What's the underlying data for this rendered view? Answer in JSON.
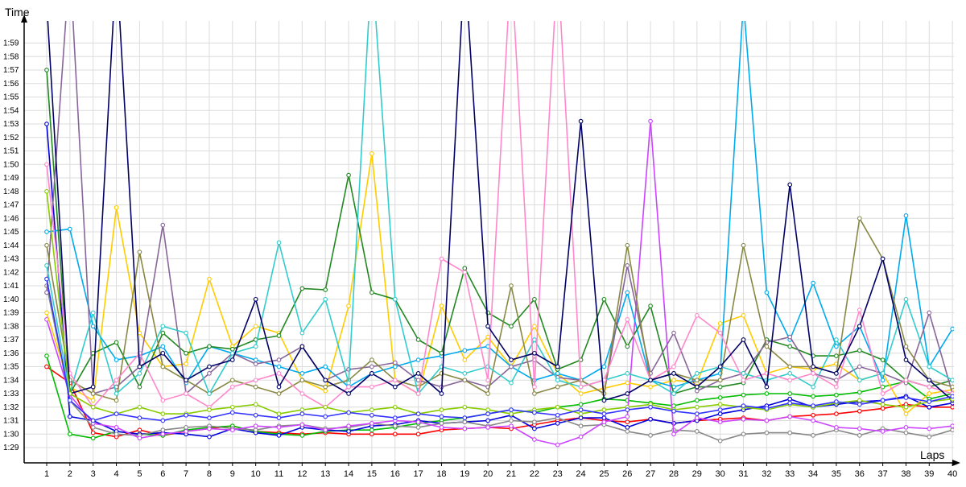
{
  "chart_data": {
    "type": "line",
    "title": "",
    "xlabel": "Laps",
    "ylabel": "Time",
    "x": [
      1,
      2,
      3,
      4,
      5,
      6,
      7,
      8,
      9,
      10,
      11,
      12,
      13,
      14,
      15,
      16,
      17,
      18,
      19,
      20,
      21,
      22,
      23,
      24,
      25,
      26,
      27,
      28,
      29,
      30,
      31,
      32,
      33,
      34,
      35,
      36,
      37,
      38,
      39,
      40
    ],
    "xlim": [
      1,
      40
    ],
    "ylim": [
      "1:28",
      "2:00"
    ],
    "y_ticks": [
      "1:29",
      "1:30",
      "1:31",
      "1:32",
      "1:33",
      "1:34",
      "1:35",
      "1:36",
      "1:37",
      "1:38",
      "1:39",
      "1:40",
      "1:41",
      "1:42",
      "1:43",
      "1:44",
      "1:45",
      "1:46",
      "1:47",
      "1:48",
      "1:49",
      "1:50",
      "1:51",
      "1:52",
      "1:53",
      "1:54",
      "1:55",
      "1:56",
      "1:57",
      "1:58",
      "1:59"
    ],
    "grid": true,
    "legend": "none",
    "series": [
      {
        "color": "#ff0000",
        "values": [
          "1:35.0",
          "1:33.8",
          "1:30.1",
          "1:29.8",
          "1:30.3",
          "1:29.9",
          "1:30.2",
          "1:30.4",
          "1:30.6",
          "1:30.2",
          "1:30.1",
          "1:30.0",
          "1:30.1",
          "1:30.0",
          "1:30.0",
          "1:30.0",
          "1:30.0",
          "1:30.3",
          "1:30.4",
          "1:30.5",
          "1:30.4",
          "1:30.7",
          "1:31.0",
          "1:31.2",
          "1:31.0",
          "1:30.9",
          "1:31.1",
          "1:30.8",
          "1:31.0",
          "1:31.1",
          "1:31.2",
          "1:31.0",
          "1:31.3",
          "1:31.4",
          "1:31.5",
          "1:31.7",
          "1:31.9",
          "1:32.2",
          "1:32.0",
          "1:32.0"
        ]
      },
      {
        "color": "#00bb00",
        "values": [
          "1:35.8",
          "1:30.0",
          "1:29.7",
          "1:30.2",
          "1:30.0",
          "1:29.9",
          "1:30.3",
          "1:30.5",
          "1:30.6",
          "1:30.2",
          "1:30.0",
          "1:29.9",
          "1:30.2",
          "1:30.3",
          "1:30.3",
          "1:30.5",
          "1:30.8",
          "1:31.0",
          "1:31.2",
          "1:31.5",
          "1:31.8",
          "1:31.6",
          "1:32.0",
          "1:32.2",
          "1:32.6",
          "1:32.5",
          "1:32.3",
          "1:32.1",
          "1:32.5",
          "1:32.7",
          "1:32.9",
          "1:33.0",
          "1:33.0",
          "1:32.8",
          "1:32.9",
          "1:33.1",
          "1:33.5",
          "1:33.9",
          "1:32.6",
          "1:33.0"
        ]
      },
      {
        "color": "#0000dd",
        "values": [
          "1:53.0",
          "1:31.3",
          "1:31.0",
          "1:30.2",
          "1:30.0",
          "1:30.1",
          "1:30.0",
          "1:29.8",
          "1:30.4",
          "1:30.1",
          "1:29.9",
          "1:30.5",
          "1:30.3",
          "1:30.2",
          "1:30.6",
          "1:30.7",
          "1:31.0",
          "1:30.8",
          "1:30.9",
          "1:31.0",
          "1:31.4",
          "1:30.4",
          "1:30.8",
          "1:31.2",
          "1:31.2",
          "1:30.5",
          "1:31.1",
          "1:30.8",
          "1:31.0",
          "1:31.5",
          "1:31.8",
          "1:32.1",
          "1:32.6",
          "1:32.0",
          "1:32.2",
          "1:32.4",
          "1:32.5",
          "1:32.8",
          "1:32.0",
          "1:32.3"
        ]
      },
      {
        "color": "#888888",
        "values": [
          "1:41.0",
          "1:32.5",
          "1:30.5",
          "1:30.0",
          "1:29.9",
          "1:30.3",
          "1:30.5",
          "1:30.6",
          "1:30.4",
          "1:30.3",
          "1:30.6",
          "1:30.7",
          "1:30.4",
          "1:30.5",
          "1:30.8",
          "1:30.6",
          "1:30.5",
          "1:30.8",
          "1:30.9",
          "1:30.6",
          "1:31.0",
          "1:30.9",
          "1:31.2",
          "1:30.6",
          "1:30.7",
          "1:30.2",
          "1:29.9",
          "1:30.3",
          "1:30.2",
          "1:29.5",
          "1:30.0",
          "1:30.1",
          "1:30.1",
          "1:29.9",
          "1:30.3",
          "1:29.9",
          "1:30.4",
          "1:30.1",
          "1:29.8",
          "1:30.3"
        ]
      },
      {
        "color": "#cc44ff",
        "values": [
          "1:38.5",
          "1:32.9",
          "1:30.8",
          "1:30.5",
          "1:29.7",
          "1:30.0",
          "1:30.2",
          "1:30.4",
          "1:30.3",
          "1:30.6",
          "1:30.5",
          "1:30.7",
          "1:30.3",
          "1:30.6",
          "1:30.8",
          "1:31.0",
          "1:30.9",
          "1:30.5",
          "1:30.4",
          "1:30.5",
          "1:30.6",
          "1:29.6",
          "1:29.2",
          "1:29.8",
          "1:30.9",
          "1:31.3",
          "1:53.2",
          "1:30.0",
          "1:31.2",
          "1:30.9",
          "1:31.1",
          "1:31.0",
          "1:31.3",
          "1:31.0",
          "1:30.5",
          "1:30.4",
          "1:30.2",
          "1:30.5",
          "1:30.4",
          "1:30.6"
        ]
      },
      {
        "color": "#ffcc00",
        "values": [
          "1:39.0",
          "1:33.5",
          "1:32.5",
          "1:46.8",
          "1:37.5",
          "1:35.0",
          "1:35.2",
          "1:41.5",
          "1:36.5",
          "1:38.0",
          "1:37.5",
          "1:34.0",
          "1:33.2",
          "1:39.5",
          "1:50.8",
          "1:34.0",
          "1:33.0",
          "1:39.5",
          "1:35.5",
          "1:37.2",
          "1:35.0",
          "1:38.0",
          "1:34.5",
          "1:33.0",
          "1:33.4",
          "1:33.8",
          "1:33.5",
          "1:34.0",
          "1:33.8",
          "1:38.2",
          "1:38.8",
          "1:34.5",
          "1:35.0",
          "1:34.8",
          "1:35.2",
          "1:34.0",
          "1:34.5",
          "1:31.5",
          "1:33.0",
          "1:33.3"
        ]
      },
      {
        "color": "#00aaee",
        "values": [
          "1:45.0",
          "1:45.2",
          "1:38.0",
          "1:35.5",
          "1:35.8",
          "1:36.5",
          "1:33.8",
          "1:36.5",
          "1:36.0",
          "1:35.5",
          "1:35.0",
          "1:34.5",
          "1:35.0",
          "1:33.5",
          "1:34.5",
          "1:35.0",
          "1:35.5",
          "1:35.8",
          "1:36.2",
          "1:36.5",
          "1:35.0",
          "1:34.0",
          "1:34.5",
          "1:34.0",
          "1:35.0",
          "1:40.5",
          "1:34.0",
          "1:33.5",
          "1:34.0",
          "1:34.5",
          "2:02.0",
          "1:40.5",
          "1:37.0",
          "1:41.2",
          "1:36.5",
          "1:38.0",
          "1:34.0",
          "1:46.2",
          "1:35.0",
          "1:37.8"
        ]
      },
      {
        "color": "#228822",
        "values": [
          "1:57.0",
          "1:33.0",
          "1:36.0",
          "1:36.8",
          "1:33.5",
          "1:37.5",
          "1:36.0",
          "1:36.5",
          "1:36.3",
          "1:37.0",
          "1:37.3",
          "1:40.8",
          "1:40.7",
          "1:49.2",
          "1:40.5",
          "1:40.0",
          "1:37.0",
          "1:36.0",
          "1:42.3",
          "1:39.0",
          "1:38.0",
          "1:40.0",
          "1:34.8",
          "1:35.5",
          "1:40.0",
          "1:36.5",
          "1:39.5",
          "1:33.0",
          "1:33.5",
          "1:33.5",
          "1:33.8",
          "1:37.0",
          "1:36.5",
          "1:35.8",
          "1:35.8",
          "1:36.2",
          "1:35.5",
          "1:34.0",
          "1:33.5",
          "1:34.0"
        ]
      },
      {
        "color": "#886699",
        "values": [
          "1:40.5",
          "2:05.0",
          "1:33.0",
          "1:33.5",
          "1:35.0",
          "1:45.5",
          "1:33.0",
          "1:34.5",
          "1:36.0",
          "1:35.2",
          "1:35.5",
          "1:36.5",
          "1:34.0",
          "1:34.8",
          "1:35.0",
          "1:35.3",
          "1:34.0",
          "1:33.5",
          "1:34.0",
          "1:33.5",
          "1:35.0",
          "1:35.5",
          "1:34.2",
          "1:34.0",
          "1:33.0",
          "1:42.5",
          "1:34.5",
          "1:37.5",
          "1:33.2",
          "1:34.0",
          "1:34.5",
          "1:36.8",
          "1:37.2",
          "1:34.5",
          "1:34.0",
          "1:35.0",
          "1:34.5",
          "1:33.8",
          "1:39.0",
          "1:33.0"
        ]
      },
      {
        "color": "#888844",
        "values": [
          "1:44.0",
          "1:34.0",
          "1:33.0",
          "1:32.5",
          "1:43.5",
          "1:35.0",
          "1:34.0",
          "1:33.0",
          "1:34.0",
          "1:33.5",
          "1:33.0",
          "1:34.0",
          "1:33.5",
          "1:34.0",
          "1:35.5",
          "1:34.0",
          "1:33.5",
          "1:34.5",
          "1:34.0",
          "1:33.0",
          "1:41.0",
          "1:33.0",
          "1:33.5",
          "1:34.0",
          "1:33.0",
          "1:44.0",
          "1:34.0",
          "1:34.5",
          "1:34.0",
          "1:34.0",
          "1:44.0",
          "1:36.5",
          "1:35.0",
          "1:35.0",
          "1:34.5",
          "1:46.0",
          "1:43.0",
          "1:36.5",
          "1:34.0",
          "1:33.5"
        ]
      },
      {
        "color": "#33cccc",
        "values": [
          "1:42.5",
          "1:33.0",
          "1:39.0",
          "1:33.0",
          "1:34.5",
          "1:38.0",
          "1:37.5",
          "1:33.0",
          "1:36.0",
          "1:36.5",
          "1:44.2",
          "1:37.5",
          "1:40.0",
          "1:33.8",
          "2:05.0",
          "1:40.0",
          "1:33.0",
          "1:35.0",
          "1:34.5",
          "1:35.0",
          "1:33.8",
          "1:37.0",
          "1:34.0",
          "1:33.5",
          "1:34.0",
          "1:34.5",
          "1:34.0",
          "1:33.0",
          "1:34.5",
          "1:35.0",
          "1:34.5",
          "1:34.0",
          "1:34.5",
          "1:33.5",
          "1:37.0",
          "1:34.0",
          "1:34.5",
          "1:40.0",
          "1:35.0",
          "1:34.0"
        ]
      },
      {
        "color": "#ff88cc",
        "values": [
          "1:50.0",
          "1:34.5",
          "1:32.0",
          "1:34.0",
          "1:36.0",
          "1:32.5",
          "1:33.0",
          "1:32.0",
          "1:33.5",
          "1:34.0",
          "1:34.5",
          "1:33.0",
          "1:32.0",
          "1:33.5",
          "1:33.5",
          "1:34.0",
          "1:33.0",
          "1:43.0",
          "1:42.0",
          "1:34.0",
          "2:05.0",
          "1:33.5",
          "2:05.0",
          "1:33.5",
          "1:34.0",
          "1:38.5",
          "1:34.0",
          "1:35.0",
          "1:38.8",
          "1:37.5",
          "1:34.0",
          "1:34.5",
          "1:34.0",
          "1:34.5",
          "1:33.5",
          "1:39.2",
          "1:33.0",
          "1:34.0",
          "1:33.5",
          "1:33.0"
        ]
      },
      {
        "color": "#000066",
        "values": [
          "2:02.0",
          "1:33.0",
          "1:33.5",
          "2:05.0",
          "1:35.0",
          "1:36.0",
          "1:34.0",
          "1:35.0",
          "1:35.5",
          "1:40.0",
          "1:33.5",
          "1:36.5",
          "1:34.0",
          "1:33.0",
          "1:34.5",
          "1:33.5",
          "1:34.5",
          "1:33.0",
          "2:05.0",
          "1:38.0",
          "1:35.5",
          "1:36.0",
          "1:35.0",
          "1:53.2",
          "1:32.5",
          "1:33.0",
          "1:34.0",
          "1:34.5",
          "1:33.5",
          "1:35.0",
          "1:37.0",
          "1:33.5",
          "1:48.5",
          "1:35.0",
          "1:34.5",
          "1:38.0",
          "1:43.0",
          "1:35.5",
          "1:34.0",
          "1:32.5"
        ]
      },
      {
        "color": "#88cc00",
        "values": [
          "1:48.0",
          "1:33.0",
          "1:32.0",
          "1:31.5",
          "1:32.0",
          "1:31.5",
          "1:31.5",
          "1:31.8",
          "1:32.0",
          "1:32.2",
          "1:31.5",
          "1:31.8",
          "1:32.0",
          "1:31.6",
          "1:31.8",
          "1:32.0",
          "1:31.5",
          "1:31.8",
          "1:32.0",
          "1:31.8",
          "1:31.5",
          "1:31.8",
          "1:32.0",
          "1:31.5",
          "1:31.8",
          "1:32.0",
          "1:32.2",
          "1:31.8",
          "1:32.0",
          "1:32.2",
          "1:32.0",
          "1:31.8",
          "1:32.2",
          "1:32.0",
          "1:32.3",
          "1:32.5",
          "1:32.2",
          "1:32.0",
          "1:32.4",
          "1:32.6"
        ]
      },
      {
        "color": "#3333ff",
        "values": [
          "1:41.5",
          "1:32.5",
          "1:31.0",
          "1:31.5",
          "1:31.2",
          "1:31.0",
          "1:31.4",
          "1:31.2",
          "1:31.6",
          "1:31.4",
          "1:31.2",
          "1:31.5",
          "1:31.3",
          "1:31.6",
          "1:31.4",
          "1:31.2",
          "1:31.5",
          "1:31.3",
          "1:31.2",
          "1:31.5",
          "1:31.8",
          "1:31.6",
          "1:31.4",
          "1:31.8",
          "1:31.5",
          "1:31.8",
          "1:32.0",
          "1:31.7",
          "1:31.5",
          "1:31.8",
          "1:32.1",
          "1:31.9",
          "1:32.3",
          "1:32.1",
          "1:32.4",
          "1:32.2",
          "1:32.5",
          "1:32.7",
          "1:32.4",
          "1:32.8"
        ]
      }
    ]
  }
}
